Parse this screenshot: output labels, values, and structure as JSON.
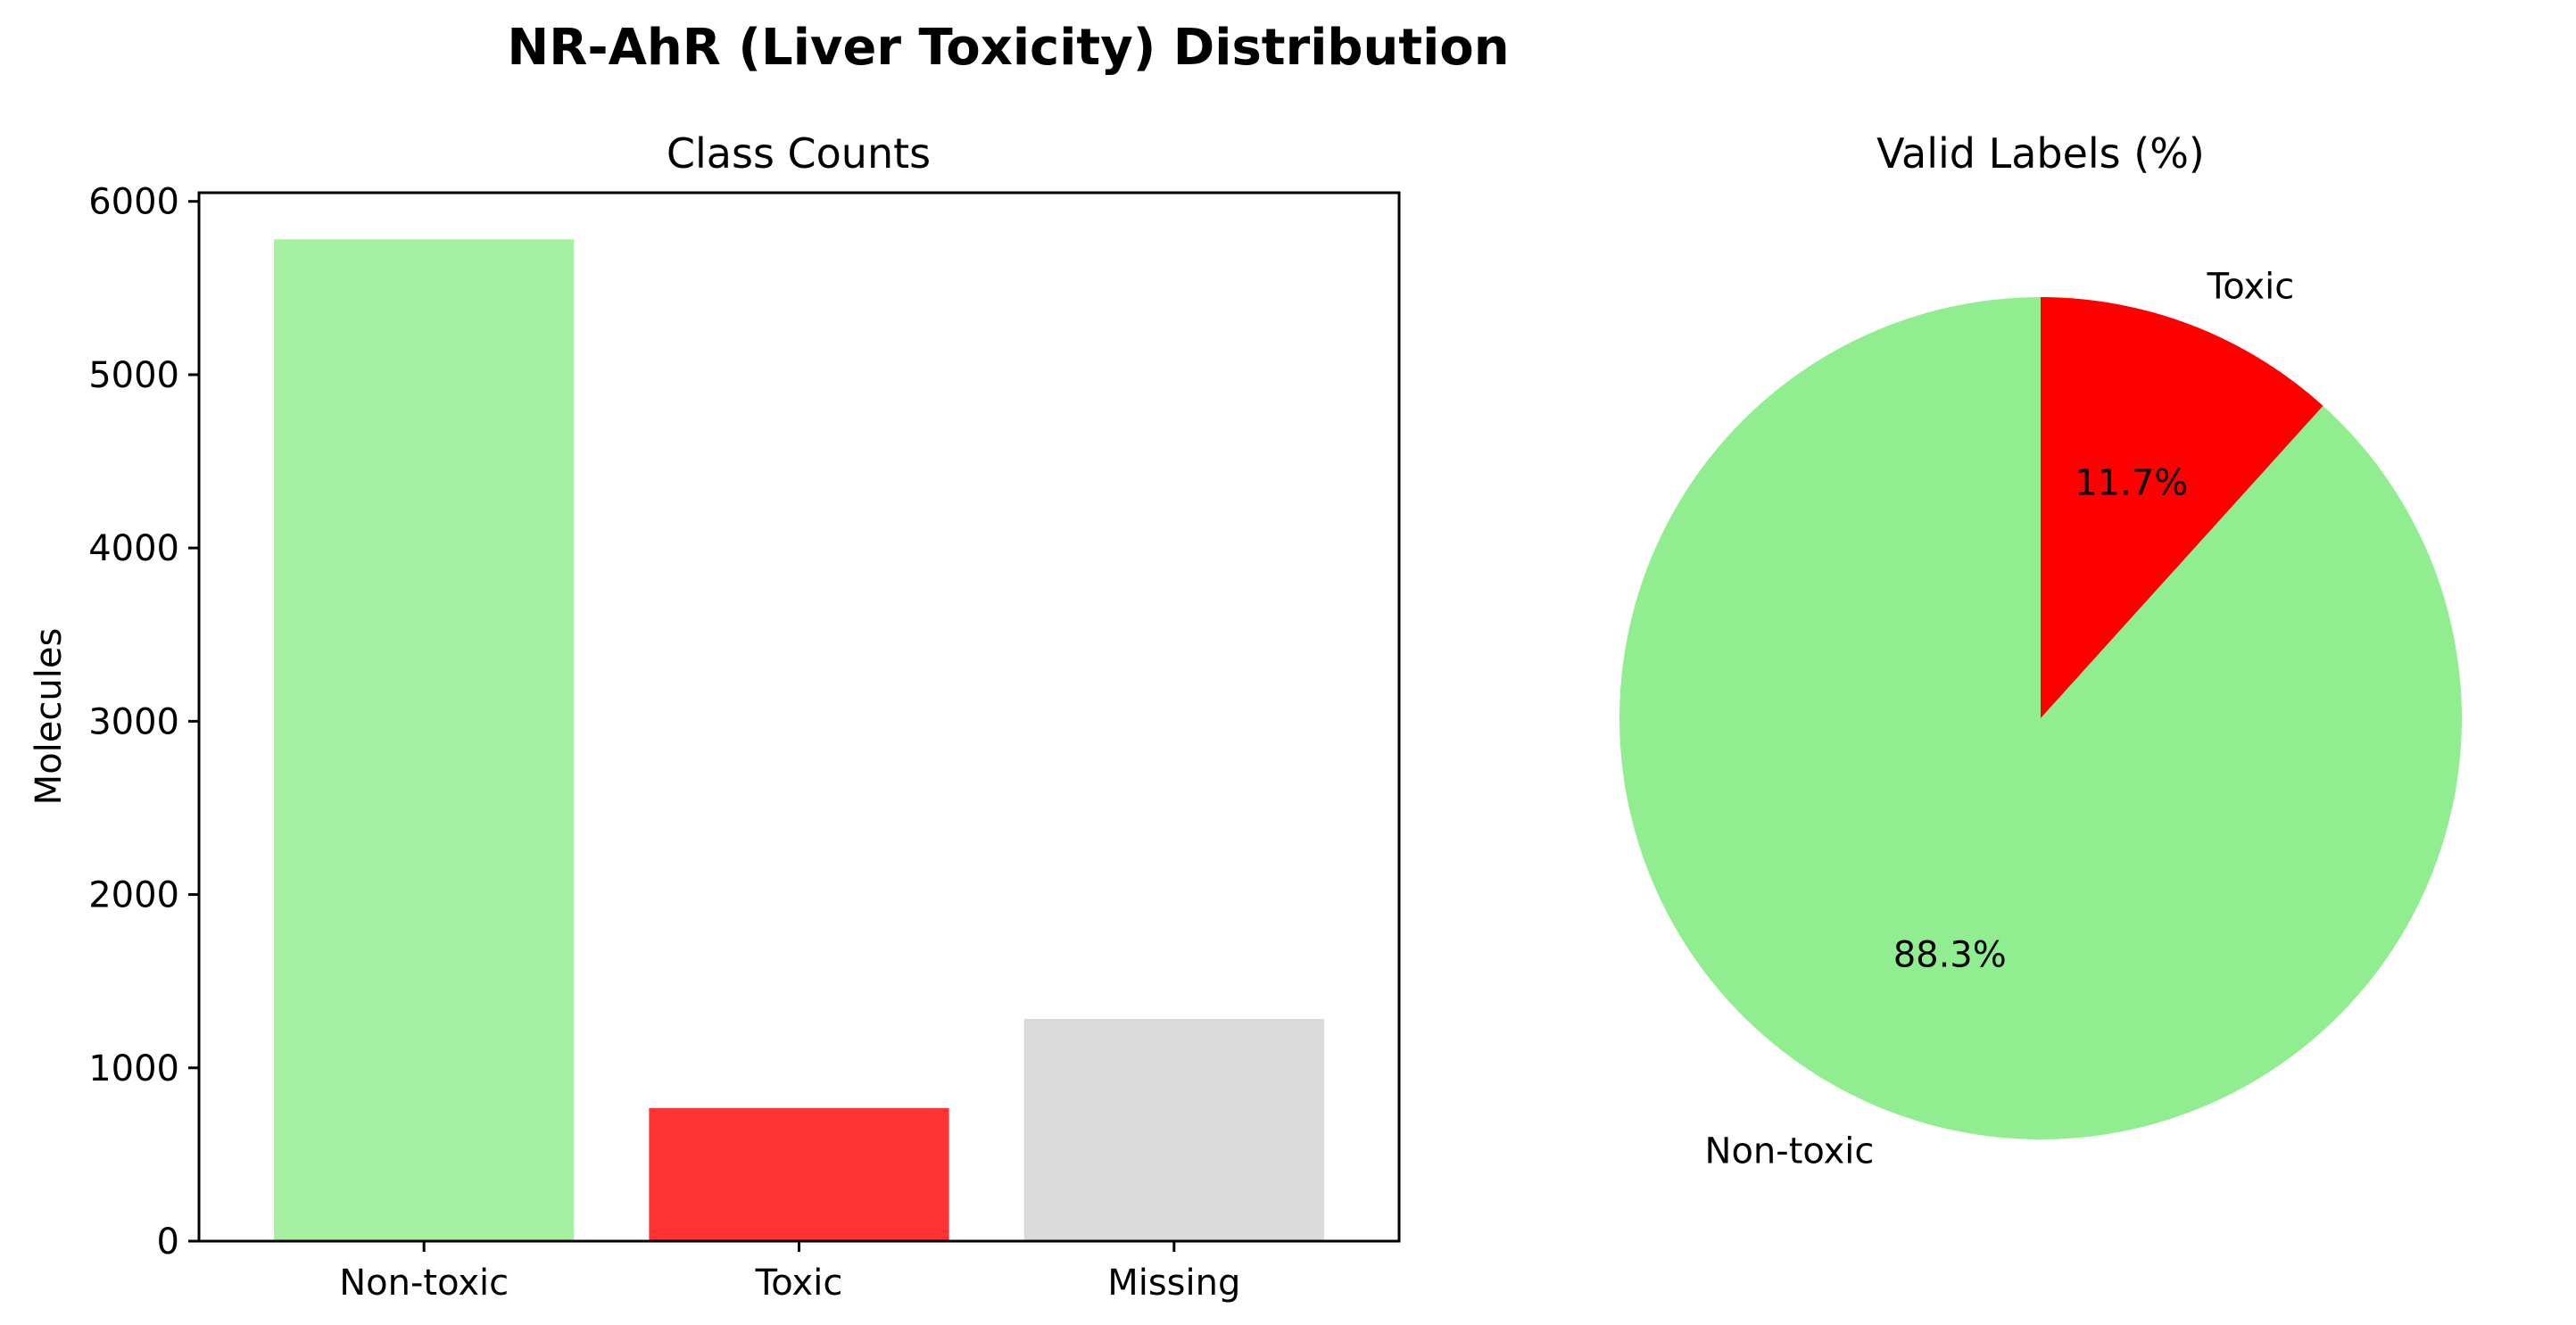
{
  "figure": {
    "title": "NR-AhR (Liver Toxicity) Distribution"
  },
  "chart_data": [
    {
      "type": "bar",
      "title": "Class Counts",
      "xlabel": "",
      "ylabel": "Molecules",
      "categories": [
        "Non-toxic",
        "Toxic",
        "Missing"
      ],
      "values": [
        5781,
        768,
        1282
      ],
      "colors": [
        "#a6f0a2",
        "#ff3333",
        "#dadada"
      ],
      "ylim": [
        0,
        6050
      ],
      "yticks": [
        0,
        1000,
        2000,
        3000,
        4000,
        5000,
        6000
      ],
      "grid": false
    },
    {
      "type": "pie",
      "title": "Valid Labels (%)",
      "labels": [
        "Toxic",
        "Non-toxic"
      ],
      "values": [
        11.7,
        88.3
      ],
      "pct_labels": [
        "11.7%",
        "88.3%"
      ],
      "colors": [
        "#ff0000",
        "#90ee90"
      ],
      "start_angle": 90,
      "direction": "clockwise"
    }
  ]
}
